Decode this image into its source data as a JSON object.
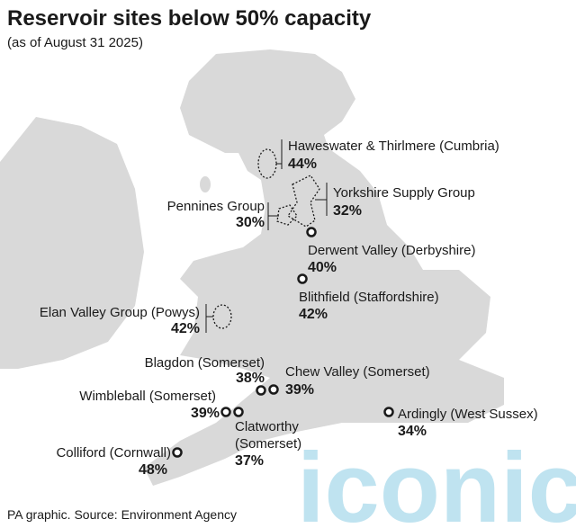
{
  "header": {
    "title": "Reservoir sites below 50% capacity",
    "subtitle": "(as of August 31 2025)"
  },
  "sites": [
    {
      "name": "Haweswater & Thirlmere (Cumbria)",
      "label": "44%"
    },
    {
      "name": "Yorkshire Supply Group",
      "label": "32%"
    },
    {
      "name": "Pennines Group",
      "label": "30%"
    },
    {
      "name": "Derwent Valley (Derbyshire)",
      "label": "40%"
    },
    {
      "name": "Blithfield (Staffordshire)",
      "label": "42%"
    },
    {
      "name": "Elan Valley Group (Powys)",
      "label": "42%"
    },
    {
      "name": "Blagdon (Somerset)",
      "label": "38%"
    },
    {
      "name": "Chew Valley (Somerset)",
      "label": "39%"
    },
    {
      "name": "Wimbleball (Somerset)",
      "label": "39%"
    },
    {
      "name": [
        "Clatworthy",
        "(Somerset)"
      ],
      "label": "37%"
    },
    {
      "name": "Ardingly (West Sussex)",
      "label": "34%"
    },
    {
      "name": "Colliford (Cornwall)",
      "label": "48%"
    }
  ],
  "source": "PA graphic. Source: Environment Agency",
  "watermark": "iconic"
}
